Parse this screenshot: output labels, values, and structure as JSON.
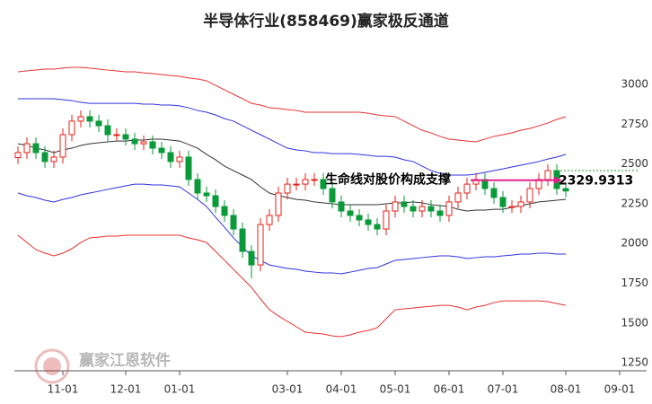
{
  "chart_data": {
    "type": "candlestick",
    "title": "半导体行业(858469)赢家极反通道",
    "annotation": "生命线对股价构成支撑",
    "watermark": "赢家江恩软件",
    "categories": [
      null,
      null,
      null,
      null,
      null,
      "11-01",
      null,
      null,
      null,
      null,
      null,
      null,
      "12-01",
      null,
      null,
      null,
      null,
      null,
      "01-01",
      null,
      null,
      null,
      null,
      null,
      null,
      null,
      null,
      null,
      null,
      null,
      "03-01",
      null,
      null,
      null,
      null,
      null,
      "04-01",
      null,
      null,
      null,
      null,
      null,
      "05-01",
      null,
      null,
      null,
      null,
      null,
      "06-01",
      null,
      null,
      null,
      null,
      null,
      "07-01",
      null,
      null,
      null,
      null,
      null,
      null,
      "08-01",
      null,
      null,
      null,
      null,
      null,
      "09-01",
      null
    ],
    "open": [
      2540,
      2571,
      2627,
      2571,
      2515,
      2543,
      2684,
      2769,
      2797,
      2769,
      2740,
      2684,
      2684,
      2656,
      2627,
      2639,
      2599,
      2571,
      2515,
      2543,
      2402,
      2317,
      2300,
      2232,
      2176,
      2091,
      1950,
      1865,
      2119,
      2176,
      2317,
      2373,
      2373,
      2402,
      2402,
      2345,
      2261,
      2204,
      2176,
      2148,
      2119,
      2091,
      2204,
      2261,
      2232,
      2204,
      2232,
      2204,
      2176,
      2261,
      2317,
      2373,
      2402,
      2345,
      2289,
      2232,
      2232,
      2261,
      2345,
      2402,
      2458,
      2345,
      null,
      null,
      null,
      null,
      null,
      null,
      null
    ],
    "high": [
      2611,
      2667,
      2667,
      2611,
      2583,
      2724,
      2809,
      2837,
      2837,
      2809,
      2780,
      2724,
      2724,
      2696,
      2679,
      2679,
      2639,
      2611,
      2583,
      2583,
      2442,
      2357,
      2340,
      2272,
      2216,
      2131,
      1990,
      2159,
      2216,
      2357,
      2413,
      2413,
      2442,
      2442,
      2442,
      2385,
      2301,
      2244,
      2216,
      2188,
      2159,
      2244,
      2301,
      2301,
      2272,
      2272,
      2272,
      2244,
      2301,
      2357,
      2413,
      2442,
      2442,
      2385,
      2329,
      2272,
      2301,
      2385,
      2442,
      2498,
      2498,
      2385,
      null,
      null,
      null,
      null,
      null,
      null,
      null
    ],
    "low": [
      2500,
      2531,
      2531,
      2475,
      2475,
      2503,
      2644,
      2729,
      2729,
      2700,
      2644,
      2644,
      2616,
      2587,
      2587,
      2559,
      2531,
      2475,
      2475,
      2362,
      2277,
      2260,
      2192,
      2136,
      2051,
      1910,
      1780,
      1825,
      2079,
      2136,
      2277,
      2333,
      2333,
      2362,
      2305,
      2221,
      2164,
      2136,
      2108,
      2079,
      2051,
      2051,
      2164,
      2192,
      2164,
      2164,
      2164,
      2136,
      2136,
      2221,
      2277,
      2333,
      2305,
      2249,
      2192,
      2192,
      2192,
      2221,
      2305,
      2362,
      2305,
      2290,
      null,
      null,
      null,
      null,
      null,
      null,
      null
    ],
    "close": [
      2571,
      2627,
      2571,
      2515,
      2543,
      2684,
      2769,
      2797,
      2769,
      2740,
      2684,
      2684,
      2656,
      2627,
      2639,
      2599,
      2571,
      2515,
      2543,
      2402,
      2317,
      2300,
      2232,
      2176,
      2091,
      1950,
      1865,
      2119,
      2176,
      2317,
      2373,
      2373,
      2402,
      2402,
      2345,
      2261,
      2204,
      2176,
      2148,
      2119,
      2091,
      2204,
      2261,
      2232,
      2204,
      2232,
      2204,
      2176,
      2261,
      2317,
      2373,
      2402,
      2345,
      2289,
      2232,
      2232,
      2261,
      2345,
      2402,
      2458,
      2345,
      2329.9313,
      null,
      null,
      null,
      null,
      null,
      null,
      null
    ],
    "up_color": "#e8201a",
    "down_color": "#0a9a3a",
    "series": [
      {
        "color": "#e83030",
        "values": [
          3079,
          3085,
          3090,
          3096,
          3096,
          3102,
          3107,
          3107,
          3102,
          3096,
          3090,
          3085,
          3079,
          3079,
          3073,
          3068,
          3062,
          3056,
          3051,
          3040,
          3034,
          3023,
          2994,
          2966,
          2938,
          2910,
          2881,
          2870,
          2853,
          2848,
          2842,
          2836,
          2825,
          2825,
          2825,
          2825,
          2825,
          2825,
          2825,
          2819,
          2808,
          2802,
          2797,
          2769,
          2740,
          2712,
          2695,
          2673,
          2656,
          2650,
          2644,
          2639,
          2656,
          2673,
          2684,
          2695,
          2712,
          2723,
          2740,
          2757,
          2780,
          2797,
          null,
          null,
          null,
          null,
          null,
          null,
          null
        ]
      },
      {
        "color": "#3030e0",
        "values": [
          2910,
          2910,
          2910,
          2910,
          2910,
          2904,
          2898,
          2887,
          2881,
          2881,
          2881,
          2881,
          2881,
          2881,
          2876,
          2876,
          2870,
          2870,
          2865,
          2853,
          2836,
          2825,
          2808,
          2785,
          2769,
          2740,
          2712,
          2684,
          2656,
          2627,
          2599,
          2588,
          2582,
          2571,
          2571,
          2565,
          2565,
          2565,
          2560,
          2554,
          2548,
          2548,
          2543,
          2526,
          2515,
          2486,
          2458,
          2441,
          2430,
          2430,
          2430,
          2436,
          2447,
          2458,
          2469,
          2481,
          2492,
          2503,
          2515,
          2531,
          2543,
          2560,
          null,
          null,
          null,
          null,
          null,
          null,
          null
        ]
      },
      {
        "color": "#333333",
        "values": [
          2627,
          2616,
          2599,
          2588,
          2571,
          2588,
          2599,
          2616,
          2627,
          2633,
          2639,
          2644,
          2644,
          2650,
          2650,
          2656,
          2656,
          2650,
          2644,
          2622,
          2599,
          2560,
          2526,
          2486,
          2458,
          2430,
          2402,
          2356,
          2317,
          2300,
          2289,
          2277,
          2272,
          2261,
          2255,
          2249,
          2244,
          2244,
          2244,
          2244,
          2244,
          2249,
          2255,
          2255,
          2261,
          2255,
          2244,
          2238,
          2232,
          2215,
          2204,
          2210,
          2210,
          2215,
          2215,
          2227,
          2238,
          2249,
          2261,
          2266,
          2272,
          2277,
          null,
          null,
          null,
          null,
          null,
          null,
          null
        ]
      },
      {
        "color": "#3030e0",
        "values": [
          2317,
          2300,
          2289,
          2272,
          2261,
          2277,
          2289,
          2306,
          2317,
          2328,
          2340,
          2351,
          2362,
          2373,
          2373,
          2368,
          2368,
          2362,
          2356,
          2317,
          2277,
          2232,
          2165,
          2102,
          2035,
          1978,
          1922,
          1894,
          1865,
          1854,
          1843,
          1837,
          1826,
          1820,
          1815,
          1815,
          1809,
          1820,
          1831,
          1843,
          1848,
          1871,
          1894,
          1899,
          1905,
          1911,
          1916,
          1922,
          1922,
          1916,
          1905,
          1911,
          1916,
          1916,
          1922,
          1927,
          1933,
          1933,
          1939,
          1939,
          1933,
          1933,
          null,
          null,
          null,
          null,
          null,
          null,
          null
        ]
      },
      {
        "color": "#e83030",
        "values": [
          2052,
          2006,
          1961,
          1939,
          1922,
          1939,
          1967,
          2006,
          2035,
          2040,
          2046,
          2046,
          2052,
          2052,
          2052,
          2052,
          2052,
          2052,
          2052,
          2035,
          2023,
          2006,
          1950,
          1894,
          1837,
          1781,
          1724,
          1651,
          1583,
          1544,
          1510,
          1476,
          1442,
          1436,
          1431,
          1419,
          1414,
          1425,
          1442,
          1453,
          1470,
          1527,
          1583,
          1589,
          1594,
          1600,
          1605,
          1611,
          1611,
          1600,
          1583,
          1600,
          1611,
          1628,
          1639,
          1639,
          1639,
          1639,
          1639,
          1634,
          1622,
          1611,
          null,
          null,
          null,
          null,
          null,
          null,
          null
        ]
      }
    ],
    "ylim": [
      1200,
      3200
    ],
    "yticks": [
      1250,
      1500,
      1750,
      2000,
      2250,
      2500,
      2750,
      3000
    ],
    "grid": false
  }
}
